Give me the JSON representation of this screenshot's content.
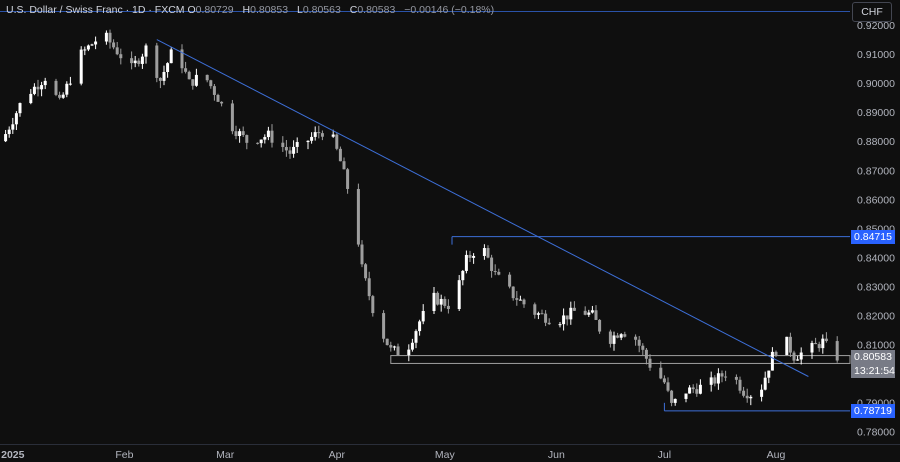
{
  "header": {
    "symbol": "U.S. Dollar / Swiss Franc · 1D · FXCM",
    "o_label": "O",
    "o_value": "0.80729",
    "h_label": "H",
    "h_value": "0.80853",
    "l_label": "L",
    "l_value": "0.80563",
    "c_label": "C",
    "c_value": "0.80583",
    "change": "−0.00146 (−0.18%)",
    "currency_button": "CHF"
  },
  "badges": {
    "resistance": "0.84715",
    "last_price": "0.80583",
    "countdown": "13:21:54",
    "support": "0.78719"
  },
  "colors": {
    "background": "#0f0f0f",
    "candle_up": "#ffffff",
    "candle_down": "#9e9e9e",
    "trendline": "#3d6fd8",
    "level_badge": "#2962ff",
    "last_price_badge": "#787b86",
    "zone": "#a0a0a0"
  },
  "chart_data": {
    "type": "candlestick",
    "ylim": [
      0.775,
      0.925
    ],
    "y_ticks": [
      "0.92000",
      "0.91000",
      "0.90000",
      "0.89000",
      "0.88000",
      "0.87000",
      "0.86000",
      "0.85000",
      "0.84000",
      "0.83000",
      "0.82000",
      "0.81000",
      "0.80000",
      "0.79000",
      "0.78000"
    ],
    "x_ticks": [
      {
        "label": "2025",
        "day": 1
      },
      {
        "label": "Feb",
        "day": 32
      },
      {
        "label": "Mar",
        "day": 60
      },
      {
        "label": "Apr",
        "day": 91
      },
      {
        "label": "May",
        "day": 121
      },
      {
        "label": "Jun",
        "day": 152
      },
      {
        "label": "Jul",
        "day": 182
      },
      {
        "label": "Aug",
        "day": 213
      }
    ],
    "first_day": -2,
    "last_day": 230,
    "anchors": [
      [
        -2,
        0.88
      ],
      [
        4,
        0.895
      ],
      [
        10,
        0.902
      ],
      [
        14,
        0.893
      ],
      [
        20,
        0.91
      ],
      [
        26,
        0.917
      ],
      [
        30,
        0.911
      ],
      [
        34,
        0.905
      ],
      [
        38,
        0.912
      ],
      [
        42,
        0.901
      ],
      [
        46,
        0.913
      ],
      [
        50,
        0.9
      ],
      [
        54,
        0.903
      ],
      [
        58,
        0.895
      ],
      [
        62,
        0.885
      ],
      [
        66,
        0.88
      ],
      [
        72,
        0.882
      ],
      [
        78,
        0.876
      ],
      [
        86,
        0.883
      ],
      [
        89,
        0.884
      ],
      [
        92,
        0.873
      ],
      [
        96,
        0.855
      ],
      [
        98,
        0.836
      ],
      [
        102,
        0.818
      ],
      [
        106,
        0.808
      ],
      [
        110,
        0.807
      ],
      [
        114,
        0.818
      ],
      [
        118,
        0.826
      ],
      [
        123,
        0.823
      ],
      [
        127,
        0.839
      ],
      [
        131,
        0.845
      ],
      [
        135,
        0.834
      ],
      [
        140,
        0.827
      ],
      [
        146,
        0.821
      ],
      [
        152,
        0.818
      ],
      [
        158,
        0.822
      ],
      [
        162,
        0.82
      ],
      [
        166,
        0.811
      ],
      [
        170,
        0.815
      ],
      [
        174,
        0.812
      ],
      [
        178,
        0.803
      ],
      [
        182,
        0.797
      ],
      [
        184,
        0.789
      ],
      [
        188,
        0.794
      ],
      [
        194,
        0.796
      ],
      [
        200,
        0.801
      ],
      [
        204,
        0.794
      ],
      [
        208,
        0.792
      ],
      [
        212,
        0.806
      ],
      [
        215,
        0.813
      ],
      [
        218,
        0.806
      ],
      [
        222,
        0.808
      ],
      [
        226,
        0.811
      ],
      [
        229,
        0.806
      ],
      [
        230,
        0.8058
      ]
    ],
    "trendline": {
      "from": [
        41,
        0.915
      ],
      "to": [
        222,
        0.799
      ]
    },
    "resistance_level": {
      "value": 0.84715,
      "from_day": 123
    },
    "support_level": {
      "value": 0.78719,
      "from_day": 182
    },
    "support_zone": {
      "low": 0.8035,
      "high": 0.8062,
      "from_day": 106
    }
  }
}
